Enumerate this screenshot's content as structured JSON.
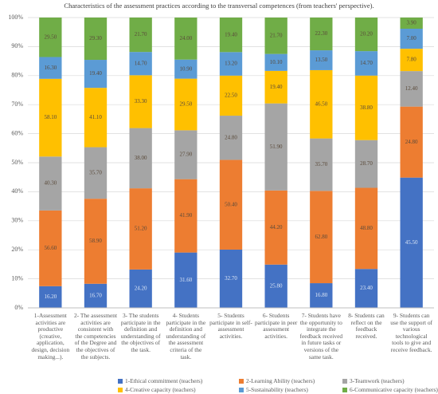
{
  "chart_data": {
    "type": "stacked_bar_percent",
    "title": "Characteristics of the assessment practices according to the transversal competences (from teachers' perspective).",
    "categories": [
      "1-Assessment activities are productive (creative, application, design, decision making...).",
      "2- The assessment activities are consistent with the competencies of the Degree and the objectives of the subjects.",
      "3- The students participate in the definition and understanding of the objectives of the task.",
      "4- Students participate in the definition and understanding of the assessment criteria of the task.",
      "5- Students participate in self-assessment activities.",
      "6- Students participate in peer assessment activities.",
      "7- Students have the opportunity to integrate the feedback received in future tasks or versions of the same task.",
      "8- Students can reflect on the feedback received.",
      "9- Students can use the support of various technological tools to give and receive feedback."
    ],
    "series": [
      {
        "name": "1-Ethical commitment (teachers)",
        "color": "#4472c4",
        "values": [
          16.2,
          16.7,
          24.2,
          31.6,
          32.7,
          25.8,
          16.8,
          23.4,
          45.5
        ]
      },
      {
        "name": "2-Learning Ability (teachers)",
        "color": "#ed7d31",
        "values": [
          56.6,
          58.9,
          51.2,
          41.9,
          50.4,
          44.2,
          62.8,
          48.8,
          24.8
        ]
      },
      {
        "name": "3-Teamwork (teachers)",
        "color": "#a5a5a5",
        "values": [
          40.3,
          35.7,
          38.0,
          27.9,
          24.8,
          51.9,
          35.7,
          28.7,
          12.4
        ]
      },
      {
        "name": "4-Creative capacity (teachers)",
        "color": "#ffc000",
        "values": [
          58.1,
          41.1,
          33.3,
          29.5,
          22.5,
          19.4,
          46.5,
          38.8,
          7.8
        ]
      },
      {
        "name": "5-Sustainability (teachers)",
        "color": "#5b9bd5",
        "values": [
          16.3,
          19.4,
          14.7,
          10.9,
          13.2,
          10.1,
          13.5,
          14.7,
          7.0
        ]
      },
      {
        "name": "6-Communicative capacity (teachers)",
        "color": "#70ad47",
        "values": [
          29.5,
          29.3,
          21.7,
          24.0,
          19.4,
          21.7,
          22.3,
          20.2,
          3.9
        ]
      }
    ],
    "value_labels": [
      [
        "16.20",
        "16.70",
        "24.20",
        "31.60",
        "32.70",
        "25.80",
        "16.80",
        "23.40",
        "45.50"
      ],
      [
        "56.60",
        "58.90",
        "51.20",
        "41.90",
        "50.40",
        "44.20",
        "62.80",
        "48.80",
        "24.80"
      ],
      [
        "40.30",
        "35.70",
        "38.00",
        "27.90",
        "24.80",
        "51.90",
        "35.70",
        "28.70",
        "12.40"
      ],
      [
        "58.10",
        "41.10",
        "33.30",
        "29.50",
        "22.50",
        "19.40",
        "46.50",
        "38.80",
        "7.80"
      ],
      [
        "16.30",
        "19.40",
        "14.70",
        "10.90",
        "13.20",
        "10.10",
        "13.50",
        "14.70",
        "7.00"
      ],
      [
        "29.50",
        "29.30",
        "21.70",
        "24.00",
        "19.40",
        "21.70",
        "22.30",
        "20.20",
        "3.90"
      ]
    ],
    "ylim": [
      0,
      100
    ],
    "yticks": [
      {
        "value": 0,
        "label": "0%"
      },
      {
        "value": 10,
        "label": "10%"
      },
      {
        "value": 20,
        "label": "20%"
      },
      {
        "value": 30,
        "label": "30%"
      },
      {
        "value": 40,
        "label": "40%"
      },
      {
        "value": 50,
        "label": "50%"
      },
      {
        "value": 60,
        "label": "60%"
      },
      {
        "value": 70,
        "label": "70%"
      },
      {
        "value": 80,
        "label": "80%"
      },
      {
        "value": 90,
        "label": "90%"
      },
      {
        "value": 100,
        "label": "100%"
      }
    ],
    "grid": true,
    "legend": "bottom"
  }
}
